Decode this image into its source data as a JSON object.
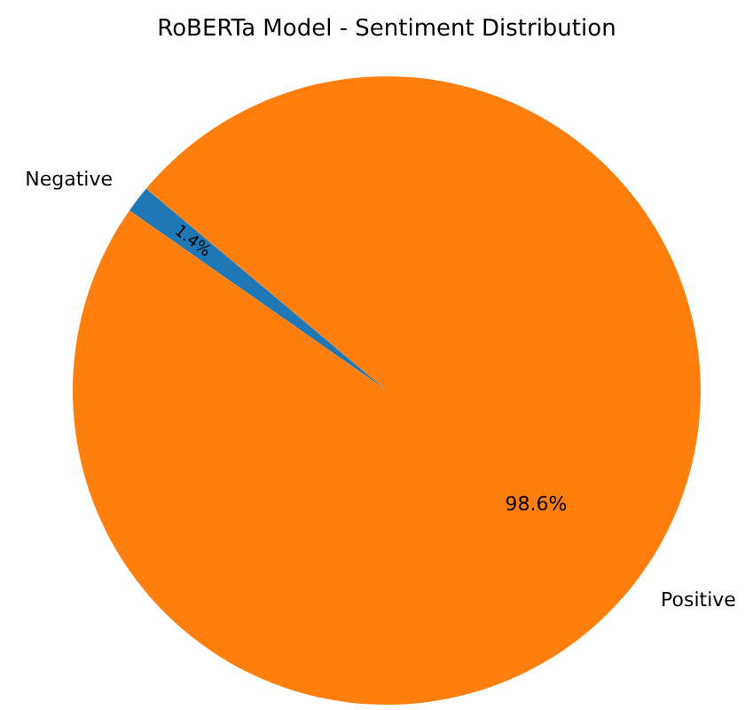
{
  "chart_data": {
    "type": "pie",
    "title": "RoBERTa Model - Sentiment Distribution",
    "categories": [
      "Negative",
      "Positive"
    ],
    "values": [
      1.4,
      98.6
    ],
    "colors": [
      "#1f77b4",
      "#ff7f0e"
    ],
    "value_labels": [
      "1.4%",
      "98.6%"
    ]
  }
}
